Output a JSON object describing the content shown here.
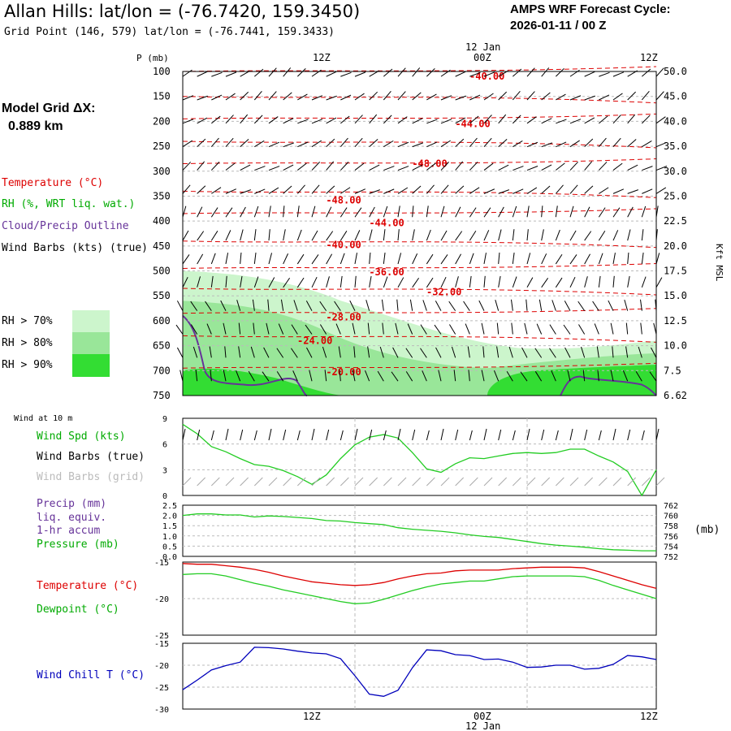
{
  "header": {
    "title": "Allan Hills:  lat/lon = (-76.7420, 159.3450)",
    "grid_point": "Grid Point (146, 579) lat/lon = (-76.7441, 159.3433)",
    "cycle_label": "AMPS WRF Forecast Cycle:",
    "cycle_value": "2026-01-11 / 00  Z",
    "model_grid_label": "Model Grid ΔX:",
    "model_grid_value": "0.889 km"
  },
  "colors": {
    "temperature": "#dd0000",
    "rh": "#00aa00",
    "cloud": "#663399",
    "wind_chill": "#0000bb",
    "rh70": "#ccf5cc",
    "rh80": "#99e699",
    "rh90": "#33dd33",
    "grid_barbs": "#aaaaaa"
  },
  "legend": {
    "temperature": "Temperature (°C)",
    "rh": "RH (%, WRT liq. wat.)",
    "cloud": "Cloud/Precip Outline",
    "wind_barbs": "Wind Barbs (kts) (true)",
    "rh_gt_70": "RH > 70%",
    "rh_gt_80": "RH > 80%",
    "rh_gt_90": "RH > 90%"
  },
  "time_axis": {
    "top_date": "12 Jan",
    "bottom_date": "12 Jan",
    "ticks": [
      "12Z",
      "00Z",
      "12Z"
    ]
  },
  "chart_data": [
    {
      "type": "contour",
      "name": "profile",
      "ylabel": "P (mb)",
      "right_label": "Kft MSL",
      "pressure_levels": [
        100,
        150,
        200,
        250,
        300,
        350,
        400,
        450,
        500,
        550,
        600,
        650,
        700,
        750
      ],
      "height_labels": [
        "50.0",
        "45.0",
        "40.0",
        "35.0",
        "30.0",
        "25.0",
        "22.5",
        "20.0",
        "17.5",
        "15.0",
        "12.5",
        "10.0",
        "7.5",
        "6.62"
      ],
      "temperature_contour_labels": [
        {
          "text": "-40.00",
          "p": 110,
          "t": 21
        },
        {
          "text": "-44.00",
          "p": 205,
          "t": 20
        },
        {
          "text": "-48.00",
          "p": 285,
          "t": 17
        },
        {
          "text": "-48.00",
          "p": 358,
          "t": 11
        },
        {
          "text": "-44.00",
          "p": 404,
          "t": 14
        },
        {
          "text": "-40.00",
          "p": 448,
          "t": 11
        },
        {
          "text": "-36.00",
          "p": 502,
          "t": 14
        },
        {
          "text": "-32.00",
          "p": 542,
          "t": 18
        },
        {
          "text": "-28.00",
          "p": 593,
          "t": 11
        },
        {
          "text": "-24.00",
          "p": 640,
          "t": 9
        },
        {
          "text": "-20.00",
          "p": 703,
          "t": 11
        }
      ]
    },
    {
      "type": "line",
      "name": "wind10m",
      "title": "Wind at 10 m",
      "labels": {
        "speed": "Wind Spd (kts)",
        "barbs_true": "Wind Barbs (true)",
        "barbs_grid": "Wind Barbs (grid)"
      },
      "ylim": [
        0,
        9
      ],
      "yticks": [
        0,
        3,
        6,
        9
      ],
      "x_hours": [
        0,
        1,
        2,
        3,
        4,
        5,
        6,
        7,
        8,
        9,
        10,
        11,
        12,
        13,
        14,
        15,
        16,
        17,
        18,
        19,
        20,
        21,
        22,
        23,
        24,
        25,
        26,
        27,
        28,
        29,
        30,
        31,
        32,
        33
      ],
      "speed": [
        8.3,
        7.2,
        5.7,
        5.1,
        4.3,
        3.6,
        3.4,
        2.9,
        2.2,
        1.3,
        2.4,
        4.3,
        5.9,
        6.8,
        7.1,
        6.7,
        5.0,
        3.1,
        2.7,
        3.7,
        4.4,
        4.3,
        4.6,
        4.9,
        5.0,
        4.9,
        5.0,
        5.4,
        5.4,
        4.6,
        3.9,
        2.8,
        0.0,
        3.0
      ]
    },
    {
      "type": "line",
      "name": "pressure",
      "labels": {
        "precip": "Precip (mm)",
        "liq": "liq. equiv.",
        "accum": "1-hr accum",
        "pressure": "Pressure (mb)",
        "unit": "(mb)"
      },
      "left_ticks": [
        "0.0",
        "0.5",
        "1.0",
        "1.5",
        "2.0",
        "2.5"
      ],
      "right_ticks": [
        "752",
        "754",
        "756",
        "758",
        "760",
        "762"
      ],
      "left_ylim": [
        0,
        2.5
      ],
      "right_ylim": [
        752,
        762
      ],
      "pressure": [
        760.0,
        760.3,
        760.3,
        760.1,
        760.1,
        759.7,
        759.9,
        759.8,
        759.6,
        759.4,
        759.0,
        758.9,
        758.6,
        758.4,
        758.2,
        757.6,
        757.3,
        757.1,
        756.9,
        756.6,
        756.2,
        755.9,
        755.7,
        755.3,
        754.9,
        754.5,
        754.2,
        754.0,
        753.8,
        753.5,
        753.3,
        753.2,
        753.1,
        753.1
      ],
      "precip": [
        0,
        0,
        0,
        0,
        0,
        0,
        0,
        0,
        0,
        0,
        0,
        0,
        0,
        0,
        0,
        0,
        0,
        0,
        0,
        0,
        0,
        0,
        0,
        0,
        0,
        0,
        0,
        0,
        0,
        0,
        0,
        0,
        0,
        0
      ]
    },
    {
      "type": "line",
      "name": "temperature",
      "labels": {
        "temp": "Temperature (°C)",
        "dew": "Dewpoint (°C)"
      },
      "ylim": [
        -25,
        -15
      ],
      "yticks": [
        "-15",
        "-20",
        "-25"
      ],
      "temperature": [
        -15.2,
        -15.3,
        -15.3,
        -15.5,
        -15.7,
        -16.0,
        -16.4,
        -16.9,
        -17.3,
        -17.7,
        -17.9,
        -18.1,
        -18.2,
        -18.1,
        -17.8,
        -17.3,
        -16.9,
        -16.6,
        -16.5,
        -16.2,
        -16.1,
        -16.1,
        -16.1,
        -15.9,
        -15.8,
        -15.7,
        -15.7,
        -15.7,
        -15.8,
        -16.3,
        -16.9,
        -17.5,
        -18.1,
        -18.6
      ],
      "dewpoint": [
        -16.7,
        -16.6,
        -16.6,
        -16.9,
        -17.4,
        -17.9,
        -18.3,
        -18.8,
        -19.2,
        -19.6,
        -20.0,
        -20.4,
        -20.7,
        -20.6,
        -20.1,
        -19.5,
        -18.9,
        -18.4,
        -18.0,
        -17.8,
        -17.6,
        -17.6,
        -17.3,
        -17.0,
        -16.9,
        -16.9,
        -16.9,
        -16.9,
        -17.0,
        -17.5,
        -18.2,
        -18.8,
        -19.4,
        -20.0
      ]
    },
    {
      "type": "line",
      "name": "windchill",
      "labels": {
        "wc": "Wind Chill T (°C)"
      },
      "ylim": [
        -30,
        -15
      ],
      "yticks": [
        "-15",
        "-20",
        "-25",
        "-30"
      ],
      "windchill": [
        -25.6,
        -23.4,
        -21.1,
        -20.1,
        -19.3,
        -15.9,
        -16.0,
        -16.3,
        -16.8,
        -17.2,
        -17.4,
        -18.5,
        -22.4,
        -26.6,
        -27.1,
        -25.7,
        -20.6,
        -16.5,
        -16.7,
        -17.6,
        -17.8,
        -18.7,
        -18.6,
        -19.3,
        -20.5,
        -20.4,
        -20.0,
        -20.0,
        -20.9,
        -20.7,
        -19.8,
        -17.8,
        -18.1,
        -18.7
      ]
    }
  ]
}
